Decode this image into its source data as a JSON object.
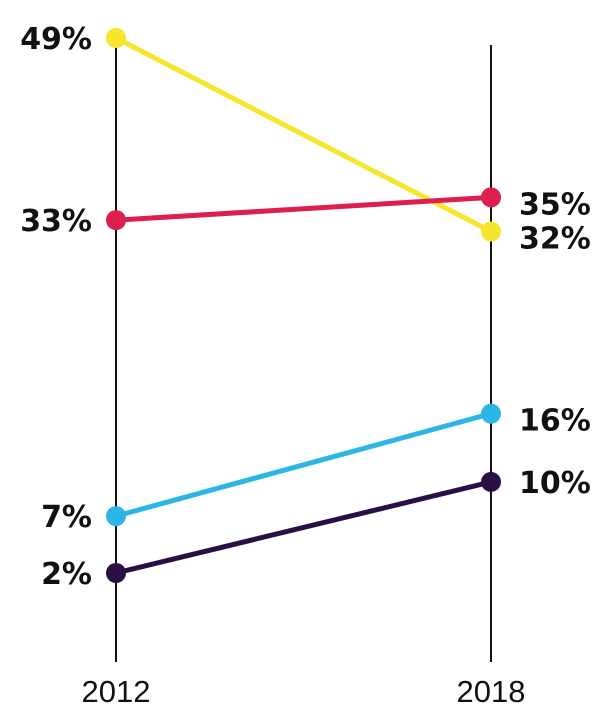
{
  "chart_data": {
    "type": "line",
    "x": [
      "2012",
      "2018"
    ],
    "series": [
      {
        "values": [
          49,
          32
        ],
        "labels": [
          "49%",
          "32%"
        ],
        "color": "#f7e62e"
      },
      {
        "values": [
          33,
          35
        ],
        "labels": [
          "33%",
          "35%"
        ],
        "color": "#dd1f4f"
      },
      {
        "values": [
          7,
          16
        ],
        "labels": [
          "7%",
          "16%"
        ],
        "color": "#2bb6e6"
      },
      {
        "values": [
          2,
          10
        ],
        "labels": [
          "2%",
          "10%"
        ],
        "color": "#2a0f45"
      }
    ],
    "title": "",
    "xlabel": "",
    "ylabel": "",
    "grid": false,
    "legend": "none"
  }
}
